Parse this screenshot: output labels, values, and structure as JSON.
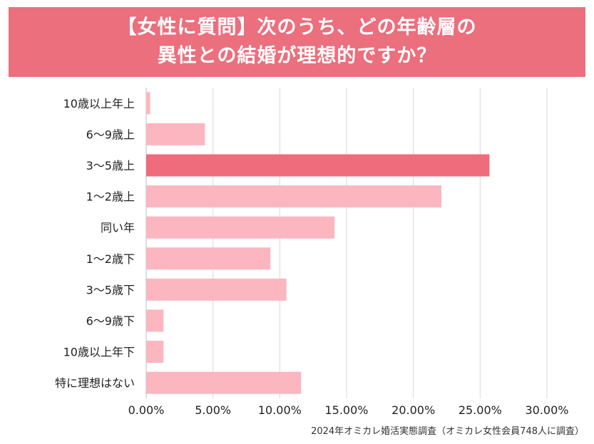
{
  "chart_data": {
    "type": "bar",
    "orientation": "horizontal",
    "title": [
      "【女性に質問】次のうち、どの年齢層の",
      "異性との結婚が理想的ですか？"
    ],
    "categories": [
      "10歳以上年上",
      "6〜9歳上",
      "3〜5歳上",
      "1〜2歳上",
      "同い年",
      "1〜2歳下",
      "3〜5歳下",
      "6〜9歳下",
      "10歳以上年下",
      "特に理想はない"
    ],
    "values": [
      0.3,
      4.4,
      25.7,
      22.1,
      14.1,
      9.3,
      10.5,
      1.3,
      1.3,
      11.6
    ],
    "highlight_index": 2,
    "xlim": [
      0,
      30
    ],
    "xticks": [
      0,
      5,
      10,
      15,
      20,
      25,
      30
    ],
    "xtick_labels": [
      "0.00%",
      "5.00%",
      "10.00%",
      "15.00%",
      "20.00%",
      "25.00%",
      "30.00%"
    ],
    "grid": true,
    "colors": {
      "bar": "#fbb6c0",
      "highlight": "#ee6c7b",
      "banner": "#eb6f7d"
    }
  },
  "source": "2024年オミカレ婚活実態調査（オミカレ女性会員748人に調査）"
}
